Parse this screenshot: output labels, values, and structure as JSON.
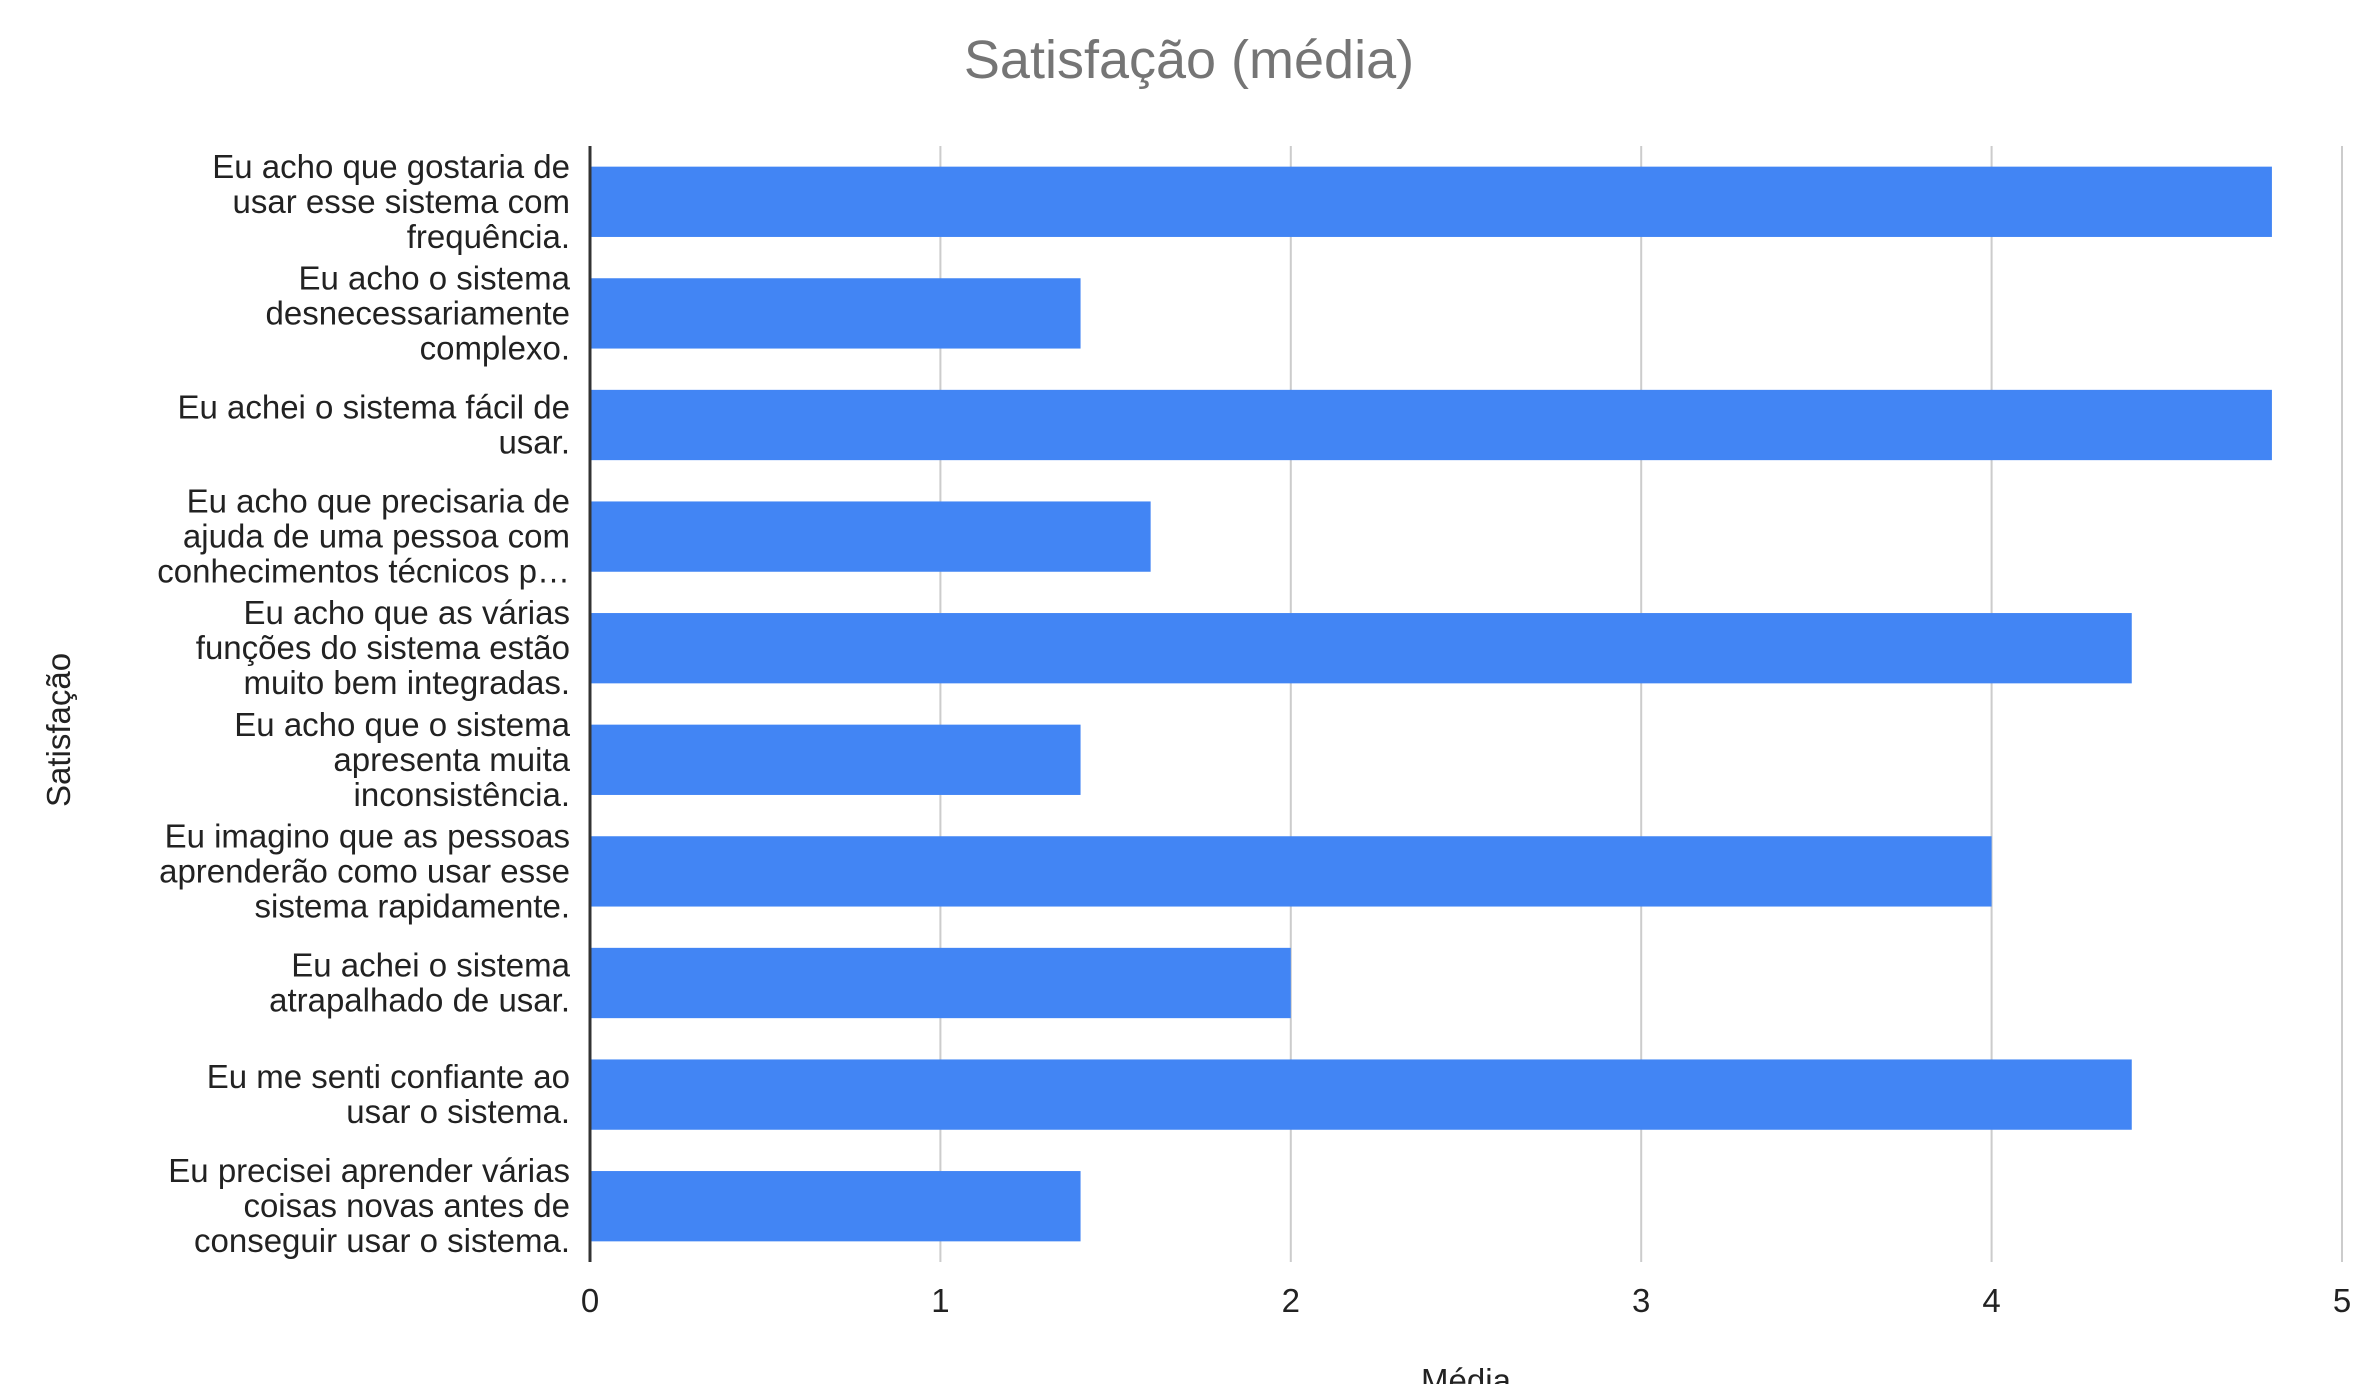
{
  "chart_data": {
    "type": "bar",
    "orientation": "horizontal",
    "title": "Satisfação (média)",
    "xlabel": "Média",
    "ylabel": "Satisfação",
    "xlim": [
      0,
      5
    ],
    "xticks": [
      "0",
      "1",
      "2",
      "3",
      "4",
      "5"
    ],
    "grid": true,
    "bar_color": "#4285f4",
    "categories": [
      [
        "Eu acho que gostaria de",
        "usar esse sistema com",
        "frequência."
      ],
      [
        "Eu acho o sistema",
        "desnecessariamente",
        "complexo."
      ],
      [
        "Eu achei o sistema fácil de",
        "usar."
      ],
      [
        "Eu acho que precisaria de",
        "ajuda de uma pessoa com",
        "conhecimentos técnicos p…"
      ],
      [
        "Eu acho que as várias",
        "funções do sistema estão",
        "muito bem integradas."
      ],
      [
        "Eu acho que o sistema",
        "apresenta muita",
        "inconsistência."
      ],
      [
        "Eu imagino que as pessoas",
        "aprenderão como usar esse",
        "sistema rapidamente."
      ],
      [
        "Eu achei o sistema",
        "atrapalhado de usar."
      ],
      [
        "Eu me senti confiante ao",
        "usar o sistema."
      ],
      [
        "Eu precisei aprender várias",
        "coisas novas antes de",
        "conseguir usar o sistema."
      ]
    ],
    "values": [
      4.8,
      1.4,
      4.8,
      1.6,
      4.4,
      1.4,
      4.0,
      2.0,
      4.4,
      1.4
    ]
  }
}
